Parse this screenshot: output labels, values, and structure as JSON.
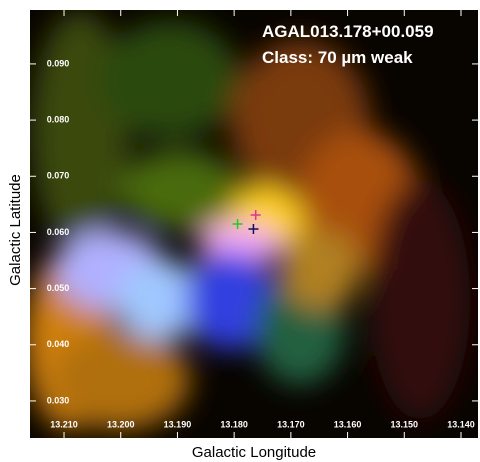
{
  "chart_data": {
    "type": "image",
    "title": "AGAL013.178+00.059",
    "subtitle": "Class: 70 µm weak",
    "x_label": "Galactic Longitude",
    "y_label": "Galactic Latitude",
    "xlim": [
      13.216,
      13.137
    ],
    "ylim": [
      0.0234,
      0.0996
    ],
    "xticks": [
      {
        "value": 13.21,
        "label": "13.210"
      },
      {
        "value": 13.2,
        "label": "13.200"
      },
      {
        "value": 13.19,
        "label": "13.190"
      },
      {
        "value": 13.18,
        "label": "13.180"
      },
      {
        "value": 13.17,
        "label": "13.170"
      },
      {
        "value": 13.16,
        "label": "13.160"
      },
      {
        "value": 13.15,
        "label": "13.150"
      },
      {
        "value": 13.14,
        "label": "13.140"
      }
    ],
    "yticks": [
      {
        "value": 0.03,
        "label": "0.030"
      },
      {
        "value": 0.04,
        "label": "0.040"
      },
      {
        "value": 0.05,
        "label": "0.050"
      },
      {
        "value": 0.06,
        "label": "0.060"
      },
      {
        "value": 0.07,
        "label": "0.070"
      },
      {
        "value": 0.08,
        "label": "0.080"
      },
      {
        "value": 0.09,
        "label": "0.090"
      }
    ],
    "markers": [
      {
        "x": 13.1794,
        "y": 0.0615,
        "color": "#22cc22"
      },
      {
        "x": 13.1762,
        "y": 0.0631,
        "color": "#e0309a"
      },
      {
        "x": 13.1766,
        "y": 0.0606,
        "color": "#101060"
      }
    ]
  }
}
